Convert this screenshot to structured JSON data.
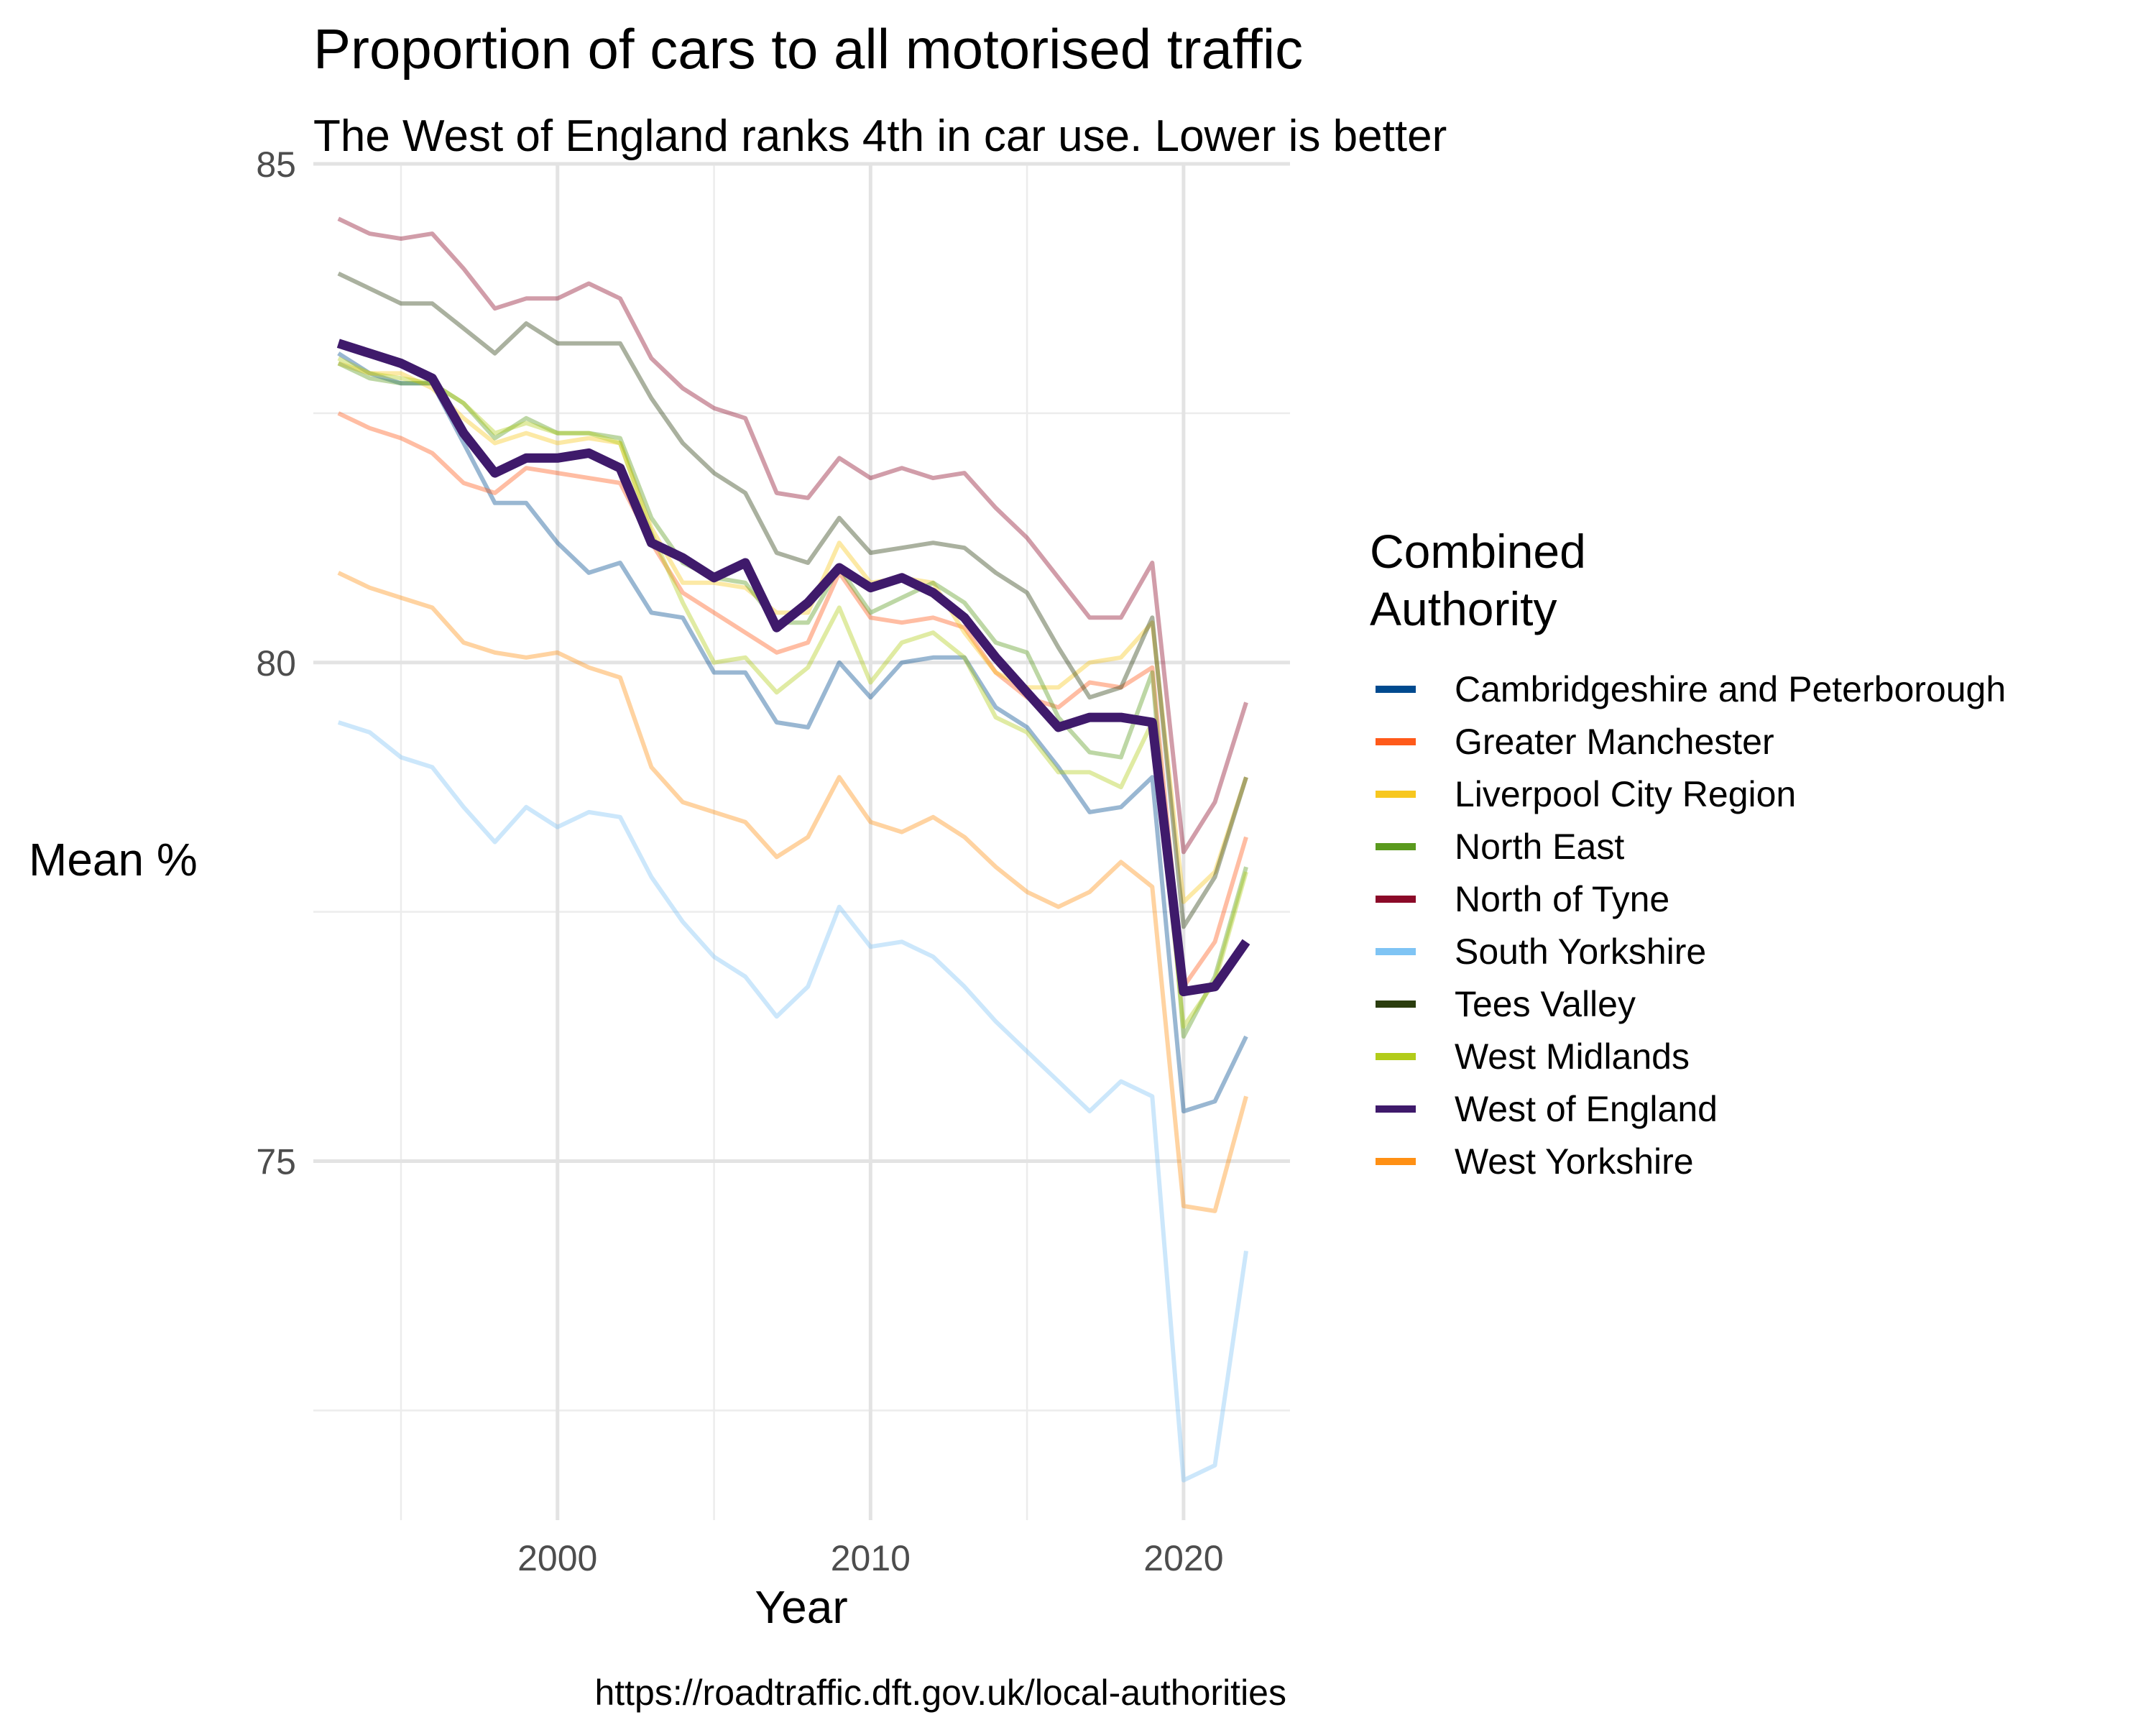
{
  "chart_data": {
    "type": "line",
    "title": "Proportion of cars to all motorised traffic",
    "subtitle": "The West of England ranks 4th in car use. Lower is better",
    "xlabel": "Year",
    "ylabel": "Mean %",
    "caption": "https://roadtraffic.dft.gov.uk/local-authorities",
    "legend_title": "Combined Authority",
    "legend_title_lines": [
      "Combined",
      "Authority"
    ],
    "legend_position": "right",
    "grid": true,
    "xlim": [
      1992.2,
      2023.4
    ],
    "ylim": [
      71.4,
      85.0
    ],
    "x_ticks": [
      2000,
      2010,
      2020
    ],
    "x_tick_labels": [
      "2000",
      "2010",
      "2020"
    ],
    "y_ticks": [
      75,
      80,
      85
    ],
    "y_tick_labels": [
      "75",
      "80",
      "85"
    ],
    "x": [
      1993,
      1994,
      1995,
      1996,
      1997,
      1998,
      1999,
      2000,
      2001,
      2002,
      2003,
      2004,
      2005,
      2006,
      2007,
      2008,
      2009,
      2010,
      2011,
      2012,
      2013,
      2014,
      2015,
      2016,
      2017,
      2018,
      2019,
      2020,
      2021,
      2022
    ],
    "highlight": "West of England",
    "series": [
      {
        "name": "Cambridgeshire and Peterborough",
        "color": "#004a8f",
        "values": [
          83.1,
          82.9,
          82.8,
          82.8,
          82.2,
          81.6,
          81.6,
          81.2,
          80.9,
          81.0,
          80.5,
          80.45,
          79.9,
          79.9,
          79.4,
          79.35,
          80.0,
          79.65,
          80.0,
          80.05,
          80.05,
          79.55,
          79.35,
          78.95,
          78.5,
          78.55,
          78.85,
          75.5,
          75.6,
          76.25
        ]
      },
      {
        "name": "Greater Manchester",
        "color": "#ff5a1a",
        "values": [
          82.5,
          82.35,
          82.25,
          82.1,
          81.8,
          81.7,
          81.95,
          81.9,
          81.85,
          81.8,
          81.2,
          80.7,
          80.5,
          80.3,
          80.1,
          80.2,
          80.9,
          80.45,
          80.4,
          80.45,
          80.35,
          79.9,
          79.65,
          79.55,
          79.8,
          79.75,
          79.95,
          76.75,
          77.2,
          78.25
        ]
      },
      {
        "name": "Liverpool City Region",
        "color": "#f7c71f",
        "values": [
          83.0,
          82.9,
          82.9,
          82.75,
          82.45,
          82.2,
          82.3,
          82.2,
          82.25,
          82.2,
          81.35,
          80.8,
          80.8,
          80.75,
          80.5,
          80.5,
          81.2,
          80.8,
          80.85,
          80.8,
          80.3,
          79.9,
          79.75,
          79.75,
          80.0,
          80.05,
          80.4,
          77.6,
          77.9,
          78.85
        ]
      },
      {
        "name": "North East",
        "color": "#5a9a1e",
        "values": [
          83.0,
          82.85,
          82.8,
          82.8,
          82.6,
          82.25,
          82.45,
          82.3,
          82.3,
          82.25,
          81.45,
          81.0,
          80.85,
          80.8,
          80.4,
          80.4,
          80.95,
          80.5,
          80.65,
          80.8,
          80.6,
          80.2,
          80.1,
          79.45,
          79.1,
          79.05,
          79.9,
          76.25,
          76.85,
          77.95
        ]
      },
      {
        "name": "North of Tyne",
        "color": "#8b0a28",
        "values": [
          84.45,
          84.3,
          84.25,
          84.3,
          83.95,
          83.55,
          83.65,
          83.65,
          83.8,
          83.65,
          83.05,
          82.75,
          82.55,
          82.45,
          81.7,
          81.65,
          82.05,
          81.85,
          81.95,
          81.85,
          81.9,
          81.55,
          81.25,
          80.85,
          80.45,
          80.45,
          81.0,
          78.1,
          78.6,
          79.6
        ]
      },
      {
        "name": "South Yorkshire",
        "color": "#7fc4f4",
        "values": [
          79.4,
          79.3,
          79.05,
          78.95,
          78.55,
          78.2,
          78.55,
          78.35,
          78.5,
          78.45,
          77.85,
          77.4,
          77.05,
          76.85,
          76.45,
          76.75,
          77.55,
          77.15,
          77.2,
          77.05,
          76.75,
          76.4,
          76.1,
          75.8,
          75.5,
          75.8,
          75.65,
          71.8,
          71.95,
          74.1
        ]
      },
      {
        "name": "Tees Valley",
        "color": "#2b3d0e",
        "values": [
          83.9,
          83.75,
          83.6,
          83.6,
          83.35,
          83.1,
          83.4,
          83.2,
          83.2,
          83.2,
          82.65,
          82.2,
          81.9,
          81.7,
          81.1,
          81.0,
          81.45,
          81.1,
          81.15,
          81.2,
          81.15,
          80.9,
          80.7,
          80.15,
          79.65,
          79.75,
          80.45,
          77.35,
          77.85,
          78.85
        ]
      },
      {
        "name": "West Midlands",
        "color": "#b2cc1a",
        "values": [
          83.05,
          82.9,
          82.85,
          82.8,
          82.6,
          82.3,
          82.4,
          82.3,
          82.3,
          82.2,
          81.3,
          80.6,
          80.0,
          80.05,
          79.7,
          79.95,
          80.55,
          79.8,
          80.2,
          80.3,
          80.05,
          79.45,
          79.3,
          78.9,
          78.9,
          78.75,
          79.4,
          76.35,
          76.8,
          77.9
        ]
      },
      {
        "name": "West of England",
        "color": "#3f1a6b",
        "values": [
          83.2,
          83.1,
          83.0,
          82.85,
          82.3,
          81.9,
          82.05,
          82.05,
          82.1,
          81.95,
          81.2,
          81.05,
          80.85,
          81.0,
          80.35,
          80.6,
          80.95,
          80.75,
          80.85,
          80.7,
          80.45,
          80.05,
          79.7,
          79.35,
          79.45,
          79.45,
          79.4,
          76.7,
          76.75,
          77.2
        ]
      },
      {
        "name": "West Yorkshire",
        "color": "#ff9014",
        "values": [
          80.9,
          80.75,
          80.65,
          80.55,
          80.2,
          80.1,
          80.05,
          80.1,
          79.95,
          79.85,
          78.95,
          78.6,
          78.5,
          78.4,
          78.05,
          78.25,
          78.85,
          78.4,
          78.3,
          78.45,
          78.25,
          77.95,
          77.7,
          77.55,
          77.7,
          78.0,
          77.75,
          74.55,
          74.5,
          75.65
        ]
      }
    ]
  }
}
